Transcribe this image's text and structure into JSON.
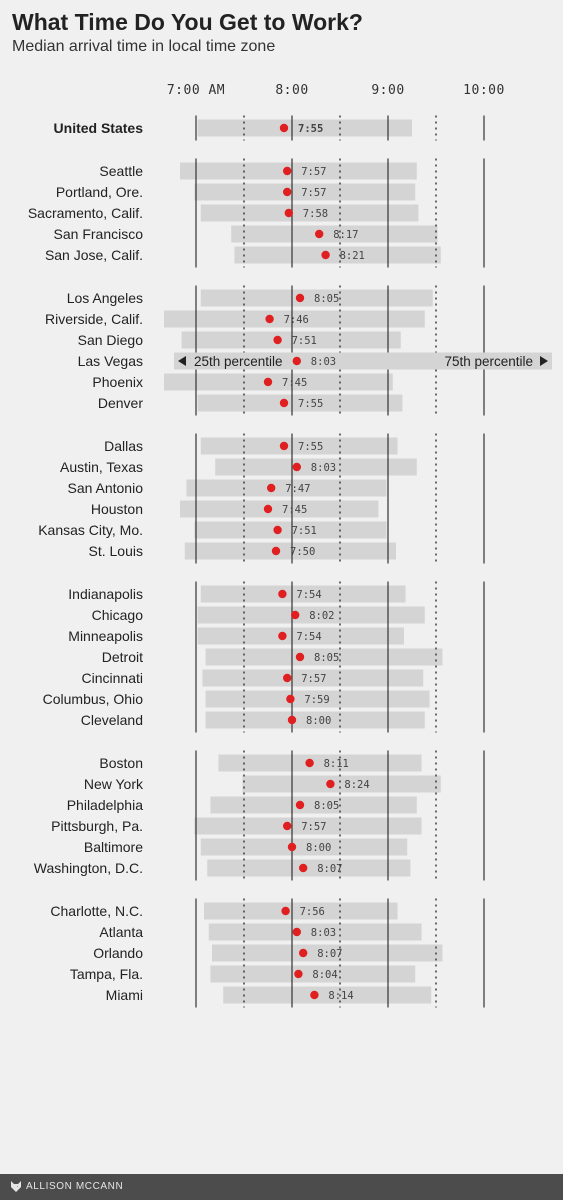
{
  "title": "What Time Do You Get to Work?",
  "subtitle": "Median arrival time in local time zone",
  "credit": "ALLISON MCCANN",
  "colors": {
    "background": "#f0f0f0",
    "bar": "#d4d4d4",
    "dot": "#e02020",
    "footer": "#4c4c4c",
    "text": "#222222",
    "value": "#444444"
  },
  "chart_data": {
    "type": "range-dot",
    "title": "What Time Do You Get to Work?",
    "subtitle": "Median arrival time in local time zone",
    "x_ticks": [
      "7:00 AM",
      "8:00",
      "9:00",
      "10:00"
    ],
    "x_tick_values": [
      420,
      480,
      540,
      600
    ],
    "x_domain": [
      420,
      600
    ],
    "legend": {
      "left": "25th percentile",
      "right": "75th percentile",
      "row": "Las Vegas"
    },
    "groups": [
      [
        {
          "city": "United States",
          "label": "7:55",
          "median": 475,
          "p25": 421,
          "p75": 555,
          "bold": true
        }
      ],
      [
        {
          "city": "Seattle",
          "label": "7:57",
          "median": 477,
          "p25": 410,
          "p75": 558
        },
        {
          "city": "Portland, Ore.",
          "label": "7:57",
          "median": 477,
          "p25": 419,
          "p75": 557
        },
        {
          "city": "Sacramento, Calif.",
          "label": "7:58",
          "median": 478,
          "p25": 423,
          "p75": 559
        },
        {
          "city": "San Francisco",
          "label": "8:17",
          "median": 497,
          "p25": 442,
          "p75": 571
        },
        {
          "city": "San Jose, Calif.",
          "label": "8:21",
          "median": 501,
          "p25": 444,
          "p75": 573
        }
      ],
      [
        {
          "city": "Los Angeles",
          "label": "8:05",
          "median": 485,
          "p25": 423,
          "p75": 568
        },
        {
          "city": "Riverside, Calif.",
          "label": "7:46",
          "median": 466,
          "p25": 400,
          "p75": 563
        },
        {
          "city": "San Diego",
          "label": "7:51",
          "median": 471,
          "p25": 411,
          "p75": 548
        },
        {
          "city": "Las Vegas",
          "label": "8:03",
          "median": 483,
          "p25": 420,
          "p75": 560
        },
        {
          "city": "Phoenix",
          "label": "7:45",
          "median": 465,
          "p25": 400,
          "p75": 543
        },
        {
          "city": "Denver",
          "label": "7:55",
          "median": 475,
          "p25": 421,
          "p75": 549
        }
      ],
      [
        {
          "city": "Dallas",
          "label": "7:55",
          "median": 475,
          "p25": 423,
          "p75": 546
        },
        {
          "city": "Austin, Texas",
          "label": "8:03",
          "median": 483,
          "p25": 432,
          "p75": 558
        },
        {
          "city": "San Antonio",
          "label": "7:47",
          "median": 467,
          "p25": 414,
          "p75": 539
        },
        {
          "city": "Houston",
          "label": "7:45",
          "median": 465,
          "p25": 410,
          "p75": 534
        },
        {
          "city": "Kansas City, Mo.",
          "label": "7:51",
          "median": 471,
          "p25": 419,
          "p75": 539
        },
        {
          "city": "St. Louis",
          "label": "7:50",
          "median": 470,
          "p25": 413,
          "p75": 545
        }
      ],
      [
        {
          "city": "Indianapolis",
          "label": "7:54",
          "median": 474,
          "p25": 423,
          "p75": 551
        },
        {
          "city": "Chicago",
          "label": "8:02",
          "median": 482,
          "p25": 421,
          "p75": 563
        },
        {
          "city": "Minneapolis",
          "label": "7:54",
          "median": 474,
          "p25": 421,
          "p75": 550
        },
        {
          "city": "Detroit",
          "label": "8:05",
          "median": 485,
          "p25": 426,
          "p75": 574
        },
        {
          "city": "Cincinnati",
          "label": "7:57",
          "median": 477,
          "p25": 424,
          "p75": 562
        },
        {
          "city": "Columbus, Ohio",
          "label": "7:59",
          "median": 479,
          "p25": 426,
          "p75": 566
        },
        {
          "city": "Cleveland",
          "label": "8:00",
          "median": 480,
          "p25": 426,
          "p75": 563
        }
      ],
      [
        {
          "city": "Boston",
          "label": "8:11",
          "median": 491,
          "p25": 434,
          "p75": 561
        },
        {
          "city": "New York",
          "label": "8:24",
          "median": 504,
          "p25": 449,
          "p75": 573
        },
        {
          "city": "Philadelphia",
          "label": "8:05",
          "median": 485,
          "p25": 429,
          "p75": 558
        },
        {
          "city": "Pittsburgh, Pa.",
          "label": "7:57",
          "median": 477,
          "p25": 419,
          "p75": 561
        },
        {
          "city": "Baltimore",
          "label": "8:00",
          "median": 480,
          "p25": 423,
          "p75": 552
        },
        {
          "city": "Washington, D.C.",
          "label": "8:07",
          "median": 487,
          "p25": 427,
          "p75": 554
        }
      ],
      [
        {
          "city": "Charlotte, N.C.",
          "label": "7:56",
          "median": 476,
          "p25": 425,
          "p75": 546
        },
        {
          "city": "Atlanta",
          "label": "8:03",
          "median": 483,
          "p25": 428,
          "p75": 561
        },
        {
          "city": "Orlando",
          "label": "8:07",
          "median": 487,
          "p25": 430,
          "p75": 574
        },
        {
          "city": "Tampa, Fla.",
          "label": "8:04",
          "median": 484,
          "p25": 429,
          "p75": 557
        },
        {
          "city": "Miami",
          "label": "8:14",
          "median": 494,
          "p25": 437,
          "p75": 567
        }
      ]
    ]
  }
}
